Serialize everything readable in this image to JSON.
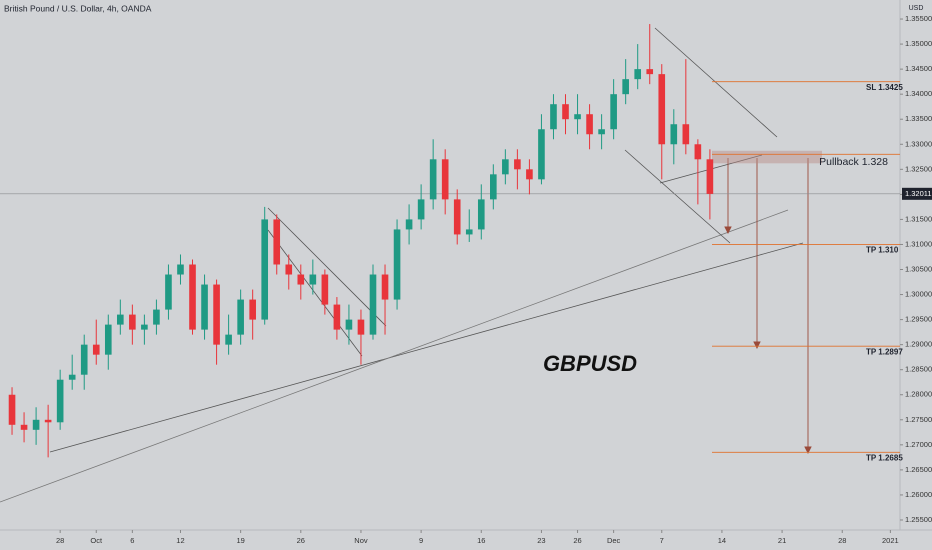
{
  "chart_data": {
    "type": "candlestick",
    "title": "British Pound / U.S. Dollar, 4h, OANDA",
    "y_axis_label": "USD",
    "annotation": "GBPUSD",
    "categories": [
      null,
      null,
      null,
      null,
      null,
      null,
      null,
      null,
      null,
      null,
      null,
      null,
      null,
      null,
      null,
      null,
      null,
      null,
      null,
      null,
      null,
      null,
      null,
      null,
      null,
      null,
      null,
      null,
      null,
      null,
      null,
      null,
      null,
      null,
      null,
      null,
      null,
      null,
      null,
      null,
      null,
      null,
      null,
      null,
      null,
      null,
      null,
      null,
      null,
      null,
      null,
      null,
      null,
      null,
      null,
      null,
      null,
      null,
      null
    ],
    "open": [
      1.28,
      1.274,
      1.273,
      1.275,
      1.2745,
      1.283,
      1.284,
      1.29,
      1.288,
      1.294,
      1.296,
      1.293,
      1.294,
      1.297,
      1.304,
      1.306,
      1.293,
      1.302,
      1.29,
      1.292,
      1.299,
      1.295,
      1.315,
      1.306,
      1.304,
      1.302,
      1.304,
      1.298,
      1.293,
      1.295,
      1.292,
      1.304,
      1.299,
      1.313,
      1.315,
      1.319,
      1.327,
      1.319,
      1.312,
      1.313,
      1.319,
      1.324,
      1.327,
      1.325,
      1.323,
      1.333,
      1.338,
      1.335,
      1.336,
      1.332,
      1.333,
      1.34,
      1.343,
      1.345,
      1.344,
      1.33,
      1.334,
      1.33,
      1.327
    ],
    "high": [
      1.2815,
      1.2765,
      1.2775,
      1.278,
      1.285,
      1.288,
      1.292,
      1.295,
      1.296,
      1.299,
      1.298,
      1.296,
      1.299,
      1.306,
      1.308,
      1.307,
      1.304,
      1.303,
      1.296,
      1.301,
      1.301,
      1.3175,
      1.316,
      1.308,
      1.306,
      1.307,
      1.305,
      1.2995,
      1.298,
      1.297,
      1.306,
      1.306,
      1.315,
      1.318,
      1.322,
      1.331,
      1.329,
      1.321,
      1.317,
      1.322,
      1.326,
      1.329,
      1.329,
      1.327,
      1.336,
      1.34,
      1.34,
      1.34,
      1.338,
      1.336,
      1.343,
      1.347,
      1.35,
      1.354,
      1.346,
      1.337,
      1.347,
      1.331,
      1.329
    ],
    "low": [
      1.272,
      1.2705,
      1.27,
      1.2675,
      1.273,
      1.281,
      1.281,
      1.286,
      1.285,
      1.292,
      1.29,
      1.29,
      1.292,
      1.295,
      1.302,
      1.292,
      1.291,
      1.286,
      1.288,
      1.29,
      1.291,
      1.294,
      1.304,
      1.301,
      1.299,
      1.3,
      1.296,
      1.291,
      1.29,
      1.286,
      1.291,
      1.292,
      1.297,
      1.31,
      1.313,
      1.317,
      1.316,
      1.31,
      1.3105,
      1.311,
      1.317,
      1.322,
      1.321,
      1.32,
      1.322,
      1.331,
      1.332,
      1.332,
      1.329,
      1.329,
      1.331,
      1.338,
      1.341,
      1.342,
      1.323,
      1.326,
      1.328,
      1.318,
      1.315
    ],
    "close": [
      1.274,
      1.273,
      1.275,
      1.2745,
      1.283,
      1.284,
      1.29,
      1.288,
      1.294,
      1.296,
      1.293,
      1.294,
      1.297,
      1.304,
      1.306,
      1.293,
      1.302,
      1.29,
      1.292,
      1.299,
      1.295,
      1.315,
      1.306,
      1.304,
      1.302,
      1.304,
      1.298,
      1.293,
      1.295,
      1.292,
      1.304,
      1.299,
      1.313,
      1.315,
      1.319,
      1.327,
      1.319,
      1.312,
      1.313,
      1.319,
      1.324,
      1.327,
      1.325,
      1.323,
      1.333,
      1.338,
      1.335,
      1.336,
      1.332,
      1.333,
      1.34,
      1.343,
      1.345,
      1.344,
      1.33,
      1.334,
      1.33,
      1.327,
      1.3201
    ],
    "up_color": "#1f9a84",
    "down_color": "#e8353b",
    "xlim": [
      -1,
      73.8
    ],
    "ylim": [
      1.253,
      1.3588
    ],
    "xticks": [
      {
        "value": 4,
        "label": "28"
      },
      {
        "value": 7,
        "label": "Oct"
      },
      {
        "value": 10,
        "label": "6"
      },
      {
        "value": 14,
        "label": "12"
      },
      {
        "value": 19,
        "label": "19"
      },
      {
        "value": 24,
        "label": "26"
      },
      {
        "value": 29,
        "label": "Nov"
      },
      {
        "value": 34,
        "label": "9"
      },
      {
        "value": 39,
        "label": "16"
      },
      {
        "value": 44,
        "label": "23"
      },
      {
        "value": 47,
        "label": "26"
      },
      {
        "value": 50,
        "label": "Dec"
      },
      {
        "value": 54,
        "label": "7"
      },
      {
        "value": 59,
        "label": "14"
      },
      {
        "value": 64,
        "label": "21"
      },
      {
        "value": 69,
        "label": "28"
      },
      {
        "value": 73,
        "label": "2021"
      }
    ],
    "yticks": [
      {
        "value": 1.355,
        "label": "1.35500"
      },
      {
        "value": 1.35,
        "label": "1.35000"
      },
      {
        "value": 1.345,
        "label": "1.34500"
      },
      {
        "value": 1.34,
        "label": "1.34000"
      },
      {
        "value": 1.335,
        "label": "1.33500"
      },
      {
        "value": 1.33,
        "label": "1.33000"
      },
      {
        "value": 1.325,
        "label": "1.32500"
      },
      {
        "value": 1.32,
        "label": "1.32000"
      },
      {
        "value": 1.315,
        "label": "1.31500"
      },
      {
        "value": 1.31,
        "label": "1.31000"
      },
      {
        "value": 1.305,
        "label": "1.30500"
      },
      {
        "value": 1.3,
        "label": "1.30000"
      },
      {
        "value": 1.295,
        "label": "1.29500"
      },
      {
        "value": 1.29,
        "label": "1.29000"
      },
      {
        "value": 1.285,
        "label": "1.28500"
      },
      {
        "value": 1.28,
        "label": "1.28000"
      },
      {
        "value": 1.275,
        "label": "1.27500"
      },
      {
        "value": 1.27,
        "label": "1.27000"
      },
      {
        "value": 1.265,
        "label": "1.26500"
      },
      {
        "value": 1.26,
        "label": "1.26000"
      },
      {
        "value": 1.255,
        "label": "1.25500"
      }
    ],
    "last_price": {
      "value": 1.32011,
      "label": "1.32011"
    },
    "pullback_zone": [
      1.3262,
      1.3287
    ],
    "level_color": "#e0712c",
    "levels": [
      {
        "label": "SL 1.3425",
        "value": 1.3425
      },
      {
        "label": "Pullback 1.328",
        "value": 1.328
      },
      {
        "label": "TP 1.310",
        "value": 1.31
      },
      {
        "label": "TP 1.2897",
        "value": 1.2897
      },
      {
        "label": "TP 1.2685",
        "value": 1.2685
      }
    ]
  }
}
